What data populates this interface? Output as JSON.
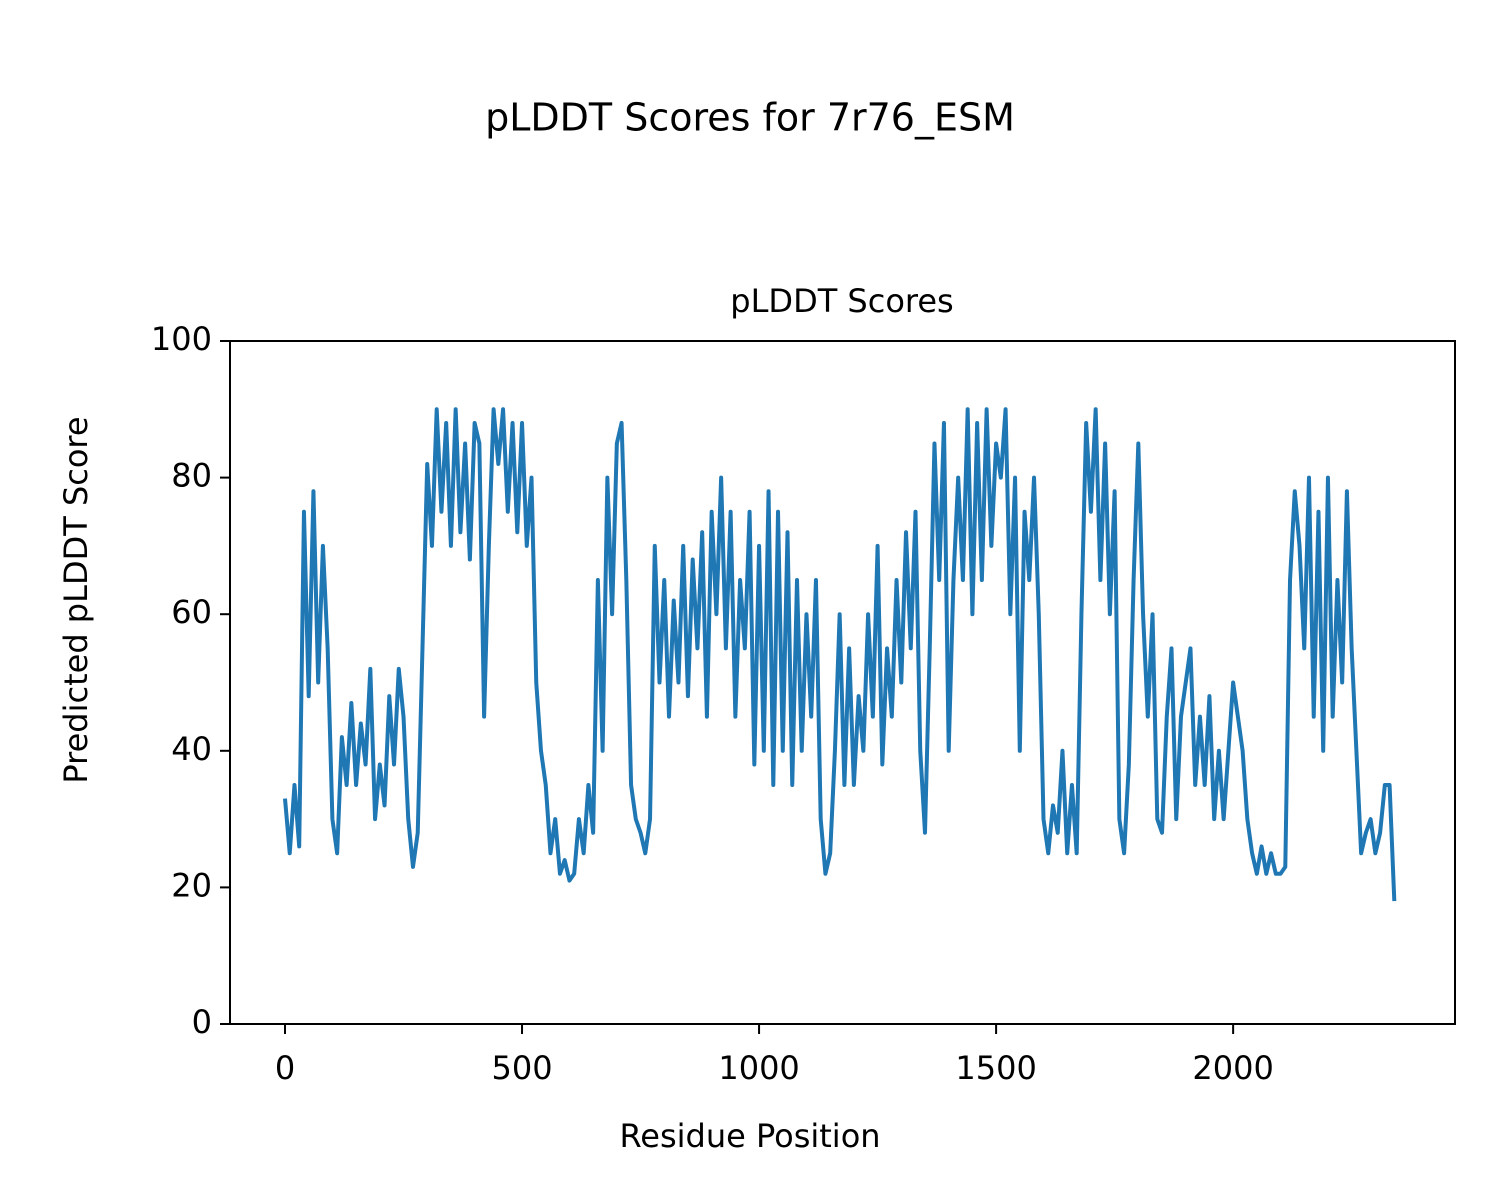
{
  "chart_data": {
    "type": "line",
    "suptitle": "pLDDT Scores for 7r76_ESM",
    "title": "pLDDT Scores",
    "xlabel": "Residue Position",
    "ylabel": "Predicted pLDDT Score",
    "xlim": [
      -116,
      2468
    ],
    "ylim": [
      0,
      100
    ],
    "xticks": [
      0,
      500,
      1000,
      1500,
      2000
    ],
    "yticks": [
      0,
      20,
      40,
      60,
      80,
      100
    ],
    "grid": false,
    "x": [
      0,
      10,
      20,
      30,
      40,
      50,
      60,
      70,
      80,
      90,
      100,
      110,
      120,
      130,
      140,
      150,
      160,
      170,
      180,
      190,
      200,
      210,
      220,
      230,
      240,
      250,
      260,
      270,
      280,
      290,
      300,
      310,
      320,
      330,
      340,
      350,
      360,
      370,
      380,
      390,
      400,
      410,
      420,
      430,
      440,
      450,
      460,
      470,
      480,
      490,
      500,
      510,
      520,
      530,
      540,
      550,
      560,
      570,
      580,
      590,
      600,
      610,
      620,
      630,
      640,
      650,
      660,
      670,
      680,
      690,
      700,
      710,
      720,
      730,
      740,
      750,
      760,
      770,
      780,
      790,
      800,
      810,
      820,
      830,
      840,
      850,
      860,
      870,
      880,
      890,
      900,
      910,
      920,
      930,
      940,
      950,
      960,
      970,
      980,
      990,
      1000,
      1010,
      1020,
      1030,
      1040,
      1050,
      1060,
      1070,
      1080,
      1090,
      1100,
      1110,
      1120,
      1130,
      1140,
      1150,
      1160,
      1170,
      1180,
      1190,
      1200,
      1210,
      1220,
      1230,
      1240,
      1250,
      1260,
      1270,
      1280,
      1290,
      1300,
      1310,
      1320,
      1330,
      1340,
      1350,
      1360,
      1370,
      1380,
      1390,
      1400,
      1410,
      1420,
      1430,
      1440,
      1450,
      1460,
      1470,
      1480,
      1490,
      1500,
      1510,
      1520,
      1530,
      1540,
      1550,
      1560,
      1570,
      1580,
      1590,
      1600,
      1610,
      1620,
      1630,
      1640,
      1650,
      1660,
      1670,
      1680,
      1690,
      1700,
      1710,
      1720,
      1730,
      1740,
      1750,
      1760,
      1770,
      1780,
      1790,
      1800,
      1810,
      1820,
      1830,
      1840,
      1850,
      1860,
      1870,
      1880,
      1890,
      1900,
      1910,
      1920,
      1930,
      1940,
      1950,
      1960,
      1970,
      1980,
      1990,
      2000,
      2010,
      2020,
      2030,
      2040,
      2050,
      2060,
      2070,
      2080,
      2090,
      2100,
      2110,
      2120,
      2130,
      2140,
      2150,
      2160,
      2170,
      2180,
      2190,
      2200,
      2210,
      2220,
      2230,
      2240,
      2250,
      2260,
      2270,
      2280,
      2290,
      2300,
      2310,
      2320,
      2330,
      2340
    ],
    "series": [
      {
        "name": "pLDDT",
        "color": "#1f77b4",
        "values": [
          33,
          25,
          35,
          26,
          75,
          48,
          78,
          50,
          70,
          55,
          30,
          25,
          42,
          35,
          47,
          35,
          44,
          38,
          52,
          30,
          38,
          32,
          48,
          38,
          52,
          45,
          30,
          23,
          28,
          55,
          82,
          70,
          90,
          75,
          88,
          70,
          90,
          72,
          85,
          68,
          88,
          85,
          45,
          70,
          90,
          82,
          90,
          75,
          88,
          72,
          88,
          70,
          80,
          50,
          40,
          35,
          25,
          30,
          22,
          24,
          21,
          22,
          30,
          25,
          35,
          28,
          65,
          40,
          80,
          60,
          85,
          88,
          65,
          35,
          30,
          28,
          25,
          30,
          70,
          50,
          65,
          45,
          62,
          50,
          70,
          48,
          68,
          55,
          72,
          45,
          75,
          60,
          80,
          55,
          75,
          45,
          65,
          55,
          75,
          38,
          70,
          40,
          78,
          35,
          75,
          40,
          72,
          35,
          65,
          40,
          60,
          45,
          65,
          30,
          22,
          25,
          40,
          60,
          35,
          55,
          35,
          48,
          40,
          60,
          45,
          70,
          38,
          55,
          45,
          65,
          50,
          72,
          55,
          75,
          40,
          28,
          55,
          85,
          65,
          88,
          40,
          65,
          80,
          65,
          90,
          60,
          88,
          65,
          90,
          70,
          85,
          80,
          90,
          60,
          80,
          40,
          75,
          65,
          80,
          60,
          30,
          25,
          32,
          28,
          40,
          25,
          35,
          25,
          60,
          88,
          75,
          90,
          65,
          85,
          60,
          78,
          30,
          25,
          38,
          65,
          85,
          60,
          45,
          60,
          30,
          28,
          45,
          55,
          30,
          45,
          50,
          55,
          35,
          45,
          35,
          48,
          30,
          40,
          30,
          40,
          50,
          45,
          40,
          30,
          25,
          22,
          26,
          22,
          25,
          22,
          22,
          23,
          65,
          78,
          70,
          55,
          80,
          45,
          75,
          40,
          80,
          45,
          65,
          50,
          78,
          55,
          40,
          25,
          28,
          30,
          25,
          28,
          35,
          35,
          18
        ]
      }
    ]
  }
}
